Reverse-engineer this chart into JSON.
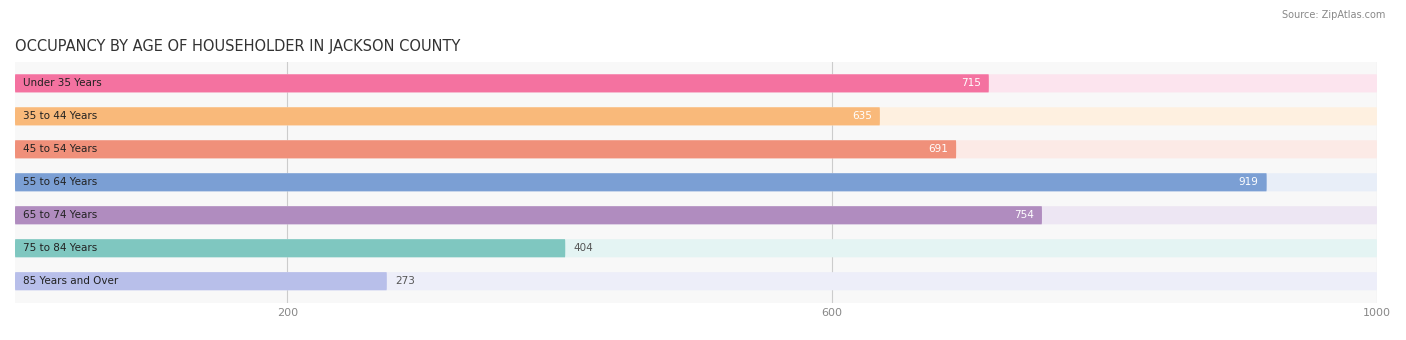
{
  "title": "OCCUPANCY BY AGE OF HOUSEHOLDER IN JACKSON COUNTY",
  "source": "Source: ZipAtlas.com",
  "categories": [
    "Under 35 Years",
    "35 to 44 Years",
    "45 to 54 Years",
    "55 to 64 Years",
    "65 to 74 Years",
    "75 to 84 Years",
    "85 Years and Over"
  ],
  "values": [
    715,
    635,
    691,
    919,
    754,
    404,
    273
  ],
  "bar_colors": [
    "#F472A0",
    "#F9B97A",
    "#F0907A",
    "#7B9FD4",
    "#B08CBF",
    "#7FC7C0",
    "#B8BFEA"
  ],
  "bar_bg_colors": [
    "#FCE4EE",
    "#FEF0E0",
    "#FCEAE6",
    "#E8EEF8",
    "#EDE6F3",
    "#E4F4F3",
    "#EDEEF9"
  ],
  "xlim": [
    0,
    1000
  ],
  "xticks": [
    200,
    600,
    1000
  ],
  "bar_height": 0.55,
  "title_fontsize": 10.5,
  "label_fontsize": 7.5,
  "value_fontsize": 7.5,
  "value_inside_threshold": 450
}
